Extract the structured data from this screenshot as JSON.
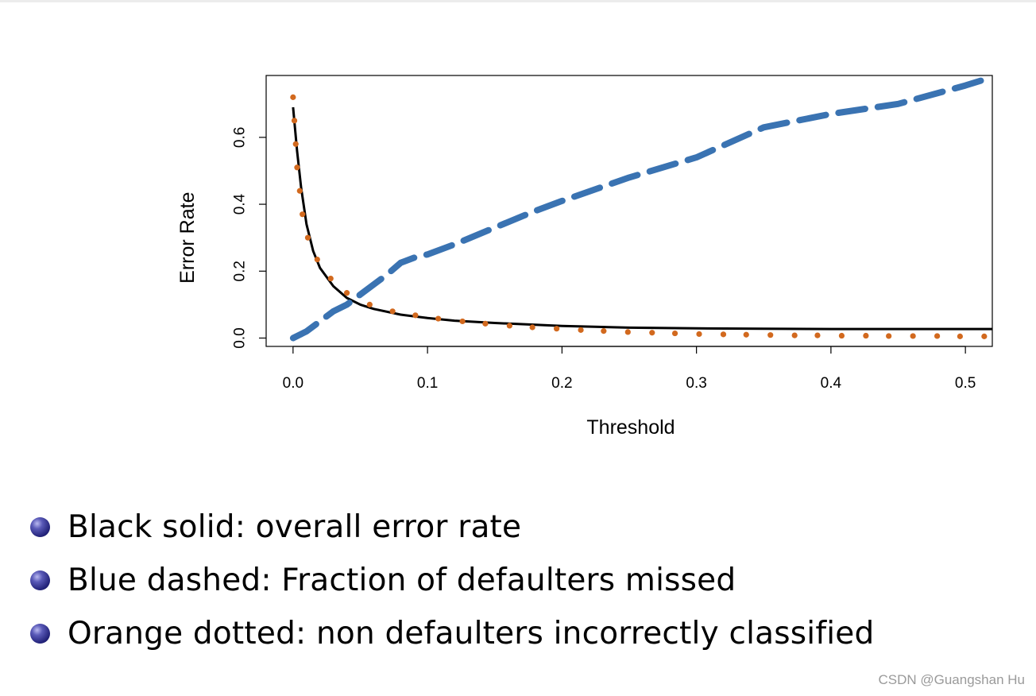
{
  "chart_data": {
    "type": "line",
    "xlabel": "Threshold",
    "ylabel": "Error Rate",
    "xlim": [
      -0.02,
      0.52
    ],
    "ylim": [
      -0.025,
      0.785
    ],
    "xticks": [
      "0.0",
      "0.1",
      "0.2",
      "0.3",
      "0.4",
      "0.5"
    ],
    "yticks": [
      "0.0",
      "0.2",
      "0.4",
      "0.6"
    ],
    "grid": false,
    "series": [
      {
        "style": "solid",
        "color": "#000000",
        "x": [
          0.0,
          0.003,
          0.006,
          0.01,
          0.015,
          0.02,
          0.03,
          0.04,
          0.05,
          0.06,
          0.08,
          0.1,
          0.12,
          0.15,
          0.2,
          0.25,
          0.3,
          0.35,
          0.4,
          0.45,
          0.5,
          0.52
        ],
        "y": [
          0.69,
          0.56,
          0.45,
          0.34,
          0.26,
          0.21,
          0.155,
          0.12,
          0.1,
          0.087,
          0.07,
          0.06,
          0.052,
          0.045,
          0.036,
          0.031,
          0.029,
          0.028,
          0.027,
          0.027,
          0.027,
          0.027
        ]
      },
      {
        "style": "dashed",
        "color": "#3a73b2",
        "x": [
          0.0,
          0.005,
          0.01,
          0.02,
          0.03,
          0.04,
          0.05,
          0.06,
          0.07,
          0.08,
          0.09,
          0.1,
          0.12,
          0.15,
          0.18,
          0.2,
          0.25,
          0.3,
          0.35,
          0.4,
          0.45,
          0.5,
          0.52
        ],
        "y": [
          0.0,
          0.01,
          0.02,
          0.05,
          0.08,
          0.1,
          0.13,
          0.16,
          0.19,
          0.225,
          0.24,
          0.25,
          0.28,
          0.33,
          0.38,
          0.41,
          0.48,
          0.54,
          0.63,
          0.67,
          0.7,
          0.755,
          0.78
        ]
      },
      {
        "style": "dotted",
        "color": "#d2691e",
        "x": [
          0.0,
          0.001,
          0.002,
          0.003,
          0.005,
          0.007,
          0.011,
          0.018,
          0.028,
          0.04,
          0.057,
          0.074,
          0.091,
          0.108,
          0.126,
          0.143,
          0.161,
          0.178,
          0.196,
          0.214,
          0.231,
          0.249,
          0.267,
          0.284,
          0.302,
          0.32,
          0.337,
          0.355,
          0.373,
          0.39,
          0.408,
          0.426,
          0.443,
          0.461,
          0.479,
          0.496,
          0.514
        ],
        "y": [
          0.72,
          0.65,
          0.58,
          0.51,
          0.44,
          0.37,
          0.3,
          0.235,
          0.178,
          0.135,
          0.1,
          0.08,
          0.068,
          0.058,
          0.05,
          0.043,
          0.037,
          0.032,
          0.028,
          0.024,
          0.021,
          0.018,
          0.016,
          0.014,
          0.012,
          0.011,
          0.01,
          0.009,
          0.008,
          0.008,
          0.007,
          0.007,
          0.006,
          0.006,
          0.006,
          0.005,
          0.005
        ]
      }
    ]
  },
  "bullets": [
    "Black solid: overall error rate",
    "Blue dashed: Fraction of defaulters missed",
    "Orange dotted: non defaulters incorrectly classified"
  ],
  "watermark": "CSDN @Guangshan Hu"
}
